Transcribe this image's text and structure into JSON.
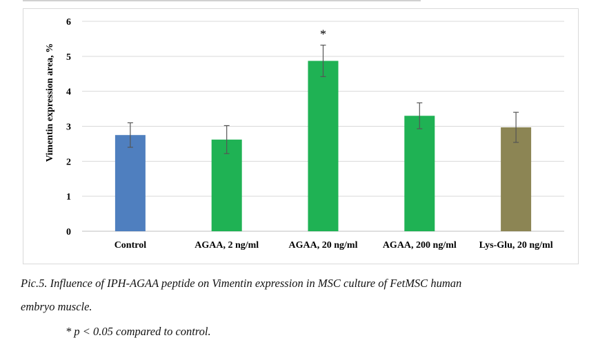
{
  "chart_data": {
    "type": "bar",
    "title": "",
    "xlabel": "",
    "ylabel": "Vimentin expression area, %",
    "ylim": [
      0,
      6
    ],
    "yticks": [
      0,
      1,
      2,
      3,
      4,
      5,
      6
    ],
    "grid": true,
    "legend": "none",
    "categories": [
      "Control",
      "AGAA, 2 ng/ml",
      "AGAA, 20 ng/ml",
      "AGAA, 200 ng/ml",
      "Lys-Glu, 20 ng/ml"
    ],
    "values": [
      2.75,
      2.62,
      4.87,
      3.3,
      2.97
    ],
    "errors": [
      0.35,
      0.4,
      0.45,
      0.37,
      0.43
    ],
    "colors": [
      "#4f7fbf",
      "#1fb254",
      "#1fb254",
      "#1fb254",
      "#8c8554"
    ],
    "annotations": [
      {
        "category": "AGAA, 20 ng/ml",
        "text": "*"
      }
    ]
  },
  "caption": {
    "line1": "Pic.5. Influence of IPH-AGAA peptide on Vimentin expression in MSC culture of FetMSC human",
    "line2": "embryo muscle.",
    "footnote": "* p < 0.05 compared to control."
  }
}
